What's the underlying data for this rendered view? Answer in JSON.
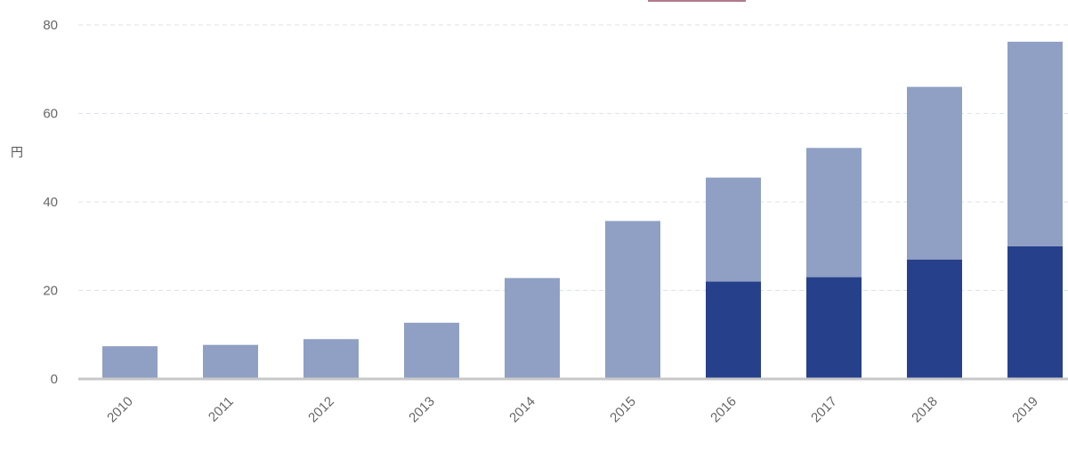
{
  "chart_data": {
    "type": "bar",
    "stacked": true,
    "categories": [
      "2010",
      "2011",
      "2012",
      "2013",
      "2014",
      "2015",
      "2016",
      "2017",
      "2018",
      "2019"
    ],
    "series": [
      {
        "values": [
          0,
          0,
          0,
          0,
          0,
          0,
          22,
          23,
          27,
          30
        ]
      },
      {
        "values": [
          7.4,
          7.7,
          9,
          12.7,
          22.8,
          35.7,
          23.5,
          29.2,
          39,
          46.2
        ]
      }
    ],
    "ylabel": "円",
    "ylim": [
      0,
      80
    ],
    "yticks": [
      0,
      20,
      40,
      60,
      80
    ],
    "grid": true,
    "colors": [
      "#27408b",
      "#90a0c4"
    ]
  }
}
